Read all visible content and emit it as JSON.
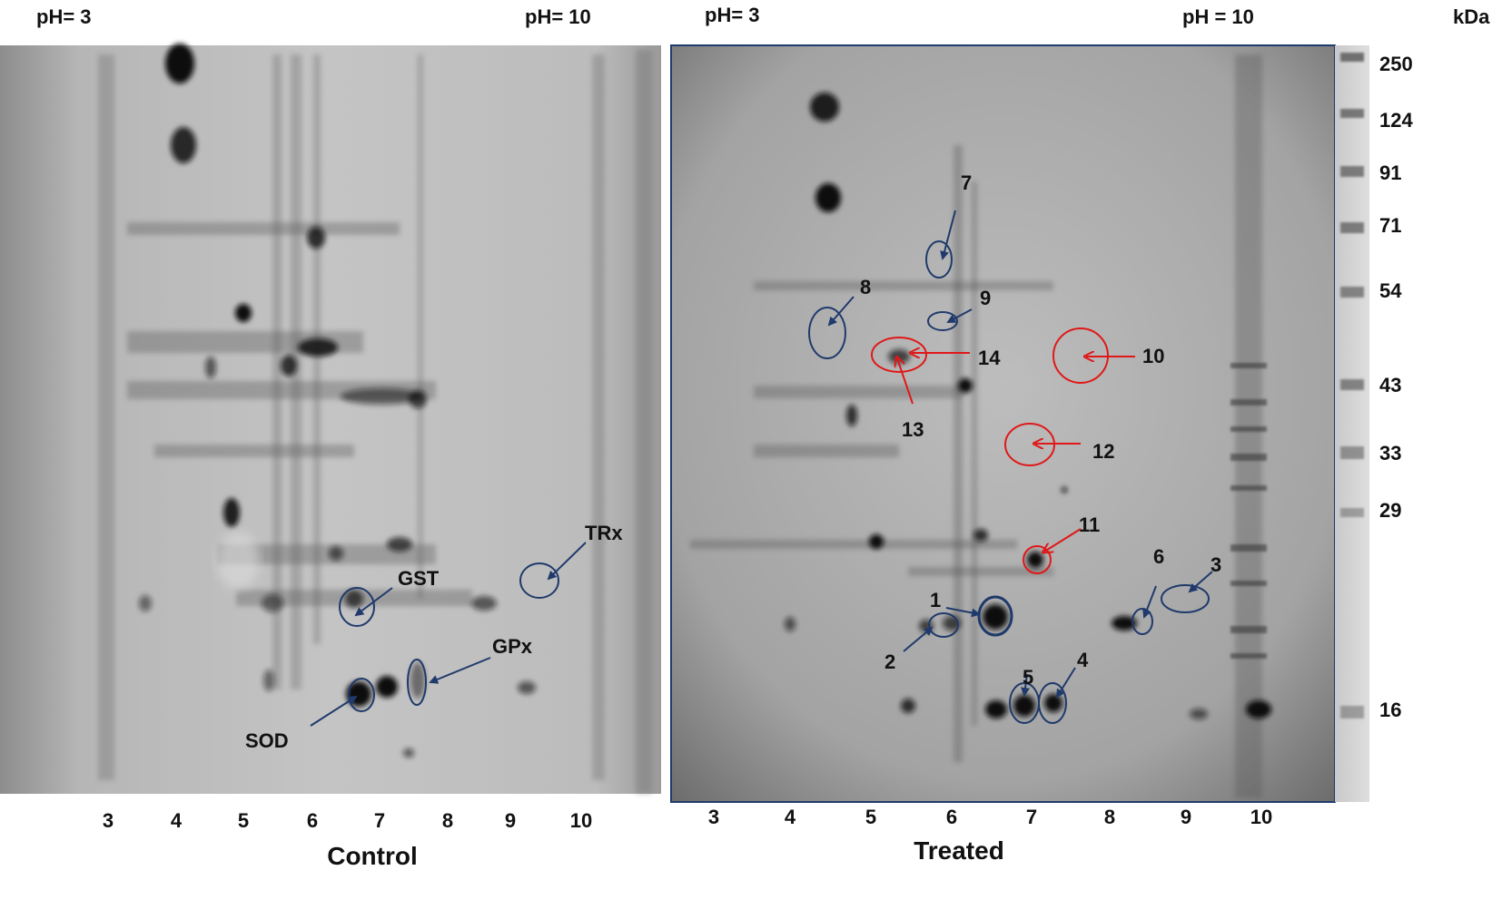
{
  "control": {
    "ph_left": "pH= 3",
    "ph_right": "pH= 10",
    "caption": "Control",
    "x_ticks": [
      "3",
      "4",
      "5",
      "6",
      "7",
      "8",
      "9",
      "10"
    ],
    "labels": {
      "gst": "GST",
      "gpx": "GPx",
      "sod": "SOD",
      "trx": "TRx"
    }
  },
  "treated": {
    "ph_left": "pH= 3",
    "ph_right": "pH = 10",
    "caption": "Treated",
    "x_ticks": [
      "3",
      "4",
      "5",
      "6",
      "7",
      "8",
      "9",
      "10"
    ],
    "spot_labels": [
      "1",
      "2",
      "3",
      "4",
      "5",
      "6",
      "7",
      "8",
      "9",
      "10",
      "11",
      "12",
      "13",
      "14"
    ]
  },
  "marker": {
    "unit": "kDa",
    "values": [
      "250",
      "124",
      "91",
      "71",
      "54",
      "43",
      "33",
      "29",
      "16"
    ]
  },
  "colors": {
    "blue_annotation": "#1f3a6b",
    "red_annotation": "#e01818"
  }
}
